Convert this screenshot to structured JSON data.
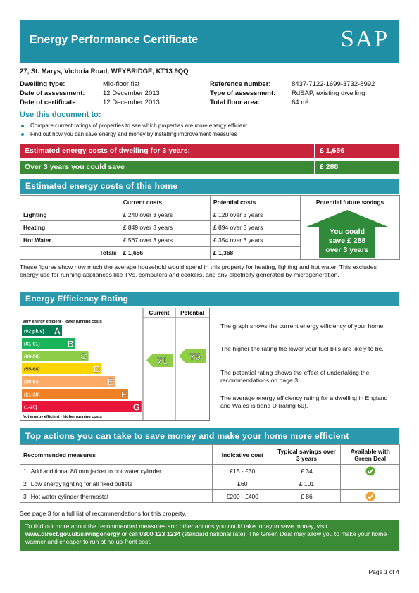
{
  "header": {
    "title": "Energy Performance Certificate",
    "logo": "SAP"
  },
  "address": "27, St. Marys, Victoria Road, WEYBRIDGE, KT13 9QQ",
  "details": {
    "left": [
      [
        "Dwelling type:",
        "Mid-floor flat"
      ],
      [
        "Date of assessment:",
        "12 December 2013"
      ],
      [
        "Date of certificate:",
        "12 December 2013"
      ]
    ],
    "right": [
      [
        "Reference number:",
        "8437-7122-1699-3732-8992"
      ],
      [
        "Type of assessment:",
        "RdSAP, existing dwelling"
      ],
      [
        "Total floor area:",
        "64 m²"
      ]
    ]
  },
  "use_document": {
    "heading": "Use this document to:",
    "bullets": [
      "Compare current ratings of properties to see which properties are more energy efficient",
      "Find out how you can save energy and money by installing improvement measures"
    ]
  },
  "cost_summary": [
    {
      "label": "Estimated energy costs of dwelling for 3 years:",
      "value": "£ 1,656",
      "color": "#c8243c"
    },
    {
      "label": "Over 3 years you could save",
      "value": "£ 288",
      "color": "#3b8a36"
    }
  ],
  "costs_section": {
    "heading": "Estimated energy costs of this home",
    "header": [
      "Current costs",
      "Potential costs",
      "Potential future savings"
    ],
    "rows": [
      [
        "Lighting",
        "£ 240 over 3 years",
        "£ 120 over 3 years"
      ],
      [
        "Heating",
        "£ 849 over 3 years",
        "£ 894 over 3 years"
      ],
      [
        "Hot Water",
        "£ 567 over 3 years",
        "£ 354 over 3 years"
      ]
    ],
    "totals": [
      "Totals",
      "£ 1,656",
      "£ 1,368"
    ],
    "savings_arrow": [
      "You could",
      "save £ 288",
      "over 3 years"
    ],
    "note": "These figures show how much the average household would spend in this property for heating, lighting and hot water. This excludes energy use for running appliances like TVs, computers and cookers, and any electricity generated by microgeneration."
  },
  "rating_section": {
    "heading": "Energy Efficiency Rating",
    "columns": [
      "Current",
      "Potential"
    ],
    "top_label": "Very energy efficient - lower running costs",
    "bottom_label": "Not energy efficient - higher running costs",
    "bands": [
      {
        "range": "(92 plus)",
        "letter": "A",
        "color": "#008054"
      },
      {
        "range": "(81-91)",
        "letter": "B",
        "color": "#19b459"
      },
      {
        "range": "(69-80)",
        "letter": "C",
        "color": "#8dce46"
      },
      {
        "range": "(55-68)",
        "letter": "D",
        "color": "#ffd500"
      },
      {
        "range": "(39-54)",
        "letter": "E",
        "color": "#fcaa65"
      },
      {
        "range": "(21-38)",
        "letter": "F",
        "color": "#ef8023"
      },
      {
        "range": "(1-20)",
        "letter": "G",
        "color": "#e9153b"
      }
    ],
    "current": 71,
    "potential": 75,
    "paragraphs": [
      "The graph shows the current energy efficiency of your home.",
      "The higher the rating the lower your fuel bills are likely to be.",
      "The potential rating shows the effect of undertaking the recommendations on page 3.",
      "The average energy efficiency rating for a dwelling in England and Wales is band D (rating 60)."
    ]
  },
  "actions_section": {
    "heading": "Top actions you can take to save money and make your home more efficient",
    "header": [
      "Recommended measures",
      "Indicative cost",
      "Typical savings over 3 years",
      "Available with Green Deal"
    ],
    "rows": [
      {
        "number": "1",
        "measure": "Add additional 80 mm jacket to hot water cylinder",
        "cost": "£15 - £30",
        "savings": "£ 34",
        "green_deal_icon": "#5aaa32"
      },
      {
        "number": "2",
        "measure": "Low energy lighting for all fixed outlets",
        "cost": "£60",
        "savings": "£ 101"
      },
      {
        "number": "3",
        "measure": "Hot water cylinder thermostat",
        "cost": "£200 - £400",
        "savings": "£ 86",
        "green_deal_icon": "#f0a030"
      }
    ],
    "note": "See page 3 for a full list of recommendations for this property."
  },
  "footer_note": [
    "To find out more about the recommended measures and other actions you could take today to save money, visit ",
    "www.direct.gov.uk/savingenergy",
    " or call ",
    "0300 123 1234",
    " (standard national rate). The Green Deal may allow you to make your home warmer and cheaper to run at no up-front cost."
  ],
  "page_number": "Page 1 of 4"
}
